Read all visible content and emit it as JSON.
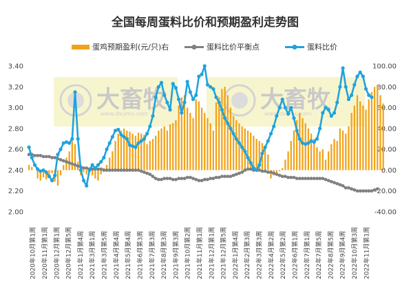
{
  "chart_data": {
    "type": "bar+line",
    "title": "全国每周蛋料比价和预期盈利走势图",
    "legend": [
      "蛋鸡预期盈利(元/只)右",
      "蛋料比价平衡点",
      "蛋料比价"
    ],
    "left_axis": {
      "ylim": [
        2.0,
        3.4
      ],
      "ticks": [
        "2.00",
        "2.20",
        "2.40",
        "2.60",
        "2.80",
        "3.00",
        "3.20",
        "3.40"
      ]
    },
    "right_axis": {
      "ylim": [
        -40,
        100
      ],
      "ticks": [
        "-40.00",
        "-20.00",
        "0.00",
        "20.00",
        "40.00",
        "60.00",
        "80.00",
        "100.00"
      ]
    },
    "x_labels": [
      "2020年10月第1周",
      "2020年11月第1周",
      "2020年12月第1周",
      "2020年12月第5周",
      "2021年1月第4周",
      "2021年3月第1周",
      "2021年3月第5周",
      "2021年4月第4周",
      "2021年5月第4周",
      "2021年6月第3周",
      "2021年7月第3周",
      "2021年8月第3周",
      "2021年9月第3周",
      "2021年10月第2周",
      "2021年11月第1周",
      "2021年12月第1周",
      "2021年12月第5周",
      "2022年1月第4周",
      "2022年2月第3周",
      "2022年3月第3周",
      "2022年4月第2周",
      "2022年5月第2周",
      "2022年6月第1周",
      "2022年7月第1周",
      "2022年7月第5周",
      "2022年8月第5周",
      "2022年9月第4周",
      "2022年10月第3周",
      "2022年11月第1周"
    ],
    "series": [
      {
        "name": "蛋鸡预期盈利(元/只)右",
        "type": "bar",
        "axis": "right",
        "color": "#f0a31a",
        "values": [
          5,
          3,
          0,
          -8,
          -10,
          -7,
          -9,
          -5,
          -3,
          -11,
          -15,
          -5,
          5,
          12,
          18,
          28,
          25,
          8,
          -5,
          -2,
          -4,
          -2,
          -5,
          -8,
          -10,
          -4,
          2,
          5,
          12,
          18,
          28,
          35,
          38,
          40,
          38,
          37,
          35,
          33,
          36,
          35,
          34,
          25,
          28,
          30,
          33,
          38,
          40,
          42,
          38,
          44,
          45,
          48,
          62,
          70,
          72,
          60,
          55,
          50,
          68,
          66,
          60,
          55,
          50,
          45,
          38,
          65,
          70,
          78,
          80,
          72,
          60,
          52,
          48,
          45,
          42,
          40,
          38,
          36,
          33,
          30,
          28,
          26,
          22,
          15,
          -8,
          -5,
          -3,
          -1,
          2,
          10,
          18,
          28,
          38,
          48,
          55,
          50,
          45,
          40,
          35,
          30,
          22,
          18,
          20,
          10,
          18,
          25,
          30,
          28,
          40,
          38,
          35,
          42,
          55,
          62,
          72,
          66,
          62,
          58,
          68,
          75,
          80,
          82,
          72,
          64
        ]
      },
      {
        "name": "蛋料比价平衡点",
        "type": "line",
        "axis": "left",
        "color": "#808080",
        "values": [
          2.55,
          2.55,
          2.54,
          2.54,
          2.54,
          2.53,
          2.53,
          2.53,
          2.52,
          2.52,
          2.51,
          2.5,
          2.49,
          2.48,
          2.47,
          2.46,
          2.45,
          2.44,
          2.43,
          2.42,
          2.42,
          2.41,
          2.41,
          2.41,
          2.41,
          2.41,
          2.4,
          2.4,
          2.4,
          2.4,
          2.4,
          2.4,
          2.4,
          2.4,
          2.4,
          2.4,
          2.4,
          2.4,
          2.4,
          2.39,
          2.38,
          2.37,
          2.36,
          2.34,
          2.32,
          2.31,
          2.31,
          2.32,
          2.32,
          2.32,
          2.31,
          2.31,
          2.32,
          2.32,
          2.32,
          2.33,
          2.33,
          2.32,
          2.31,
          2.3,
          2.3,
          2.31,
          2.31,
          2.32,
          2.32,
          2.33,
          2.33,
          2.34,
          2.34,
          2.34,
          2.34,
          2.35,
          2.36,
          2.37,
          2.38,
          2.4,
          2.41,
          2.41,
          2.4,
          2.4,
          2.4,
          2.39,
          2.39,
          2.38,
          2.38,
          2.37,
          2.36,
          2.35,
          2.34,
          2.34,
          2.33,
          2.33,
          2.33,
          2.32,
          2.32,
          2.32,
          2.32,
          2.32,
          2.32,
          2.32,
          2.32,
          2.32,
          2.32,
          2.31,
          2.3,
          2.29,
          2.28,
          2.27,
          2.26,
          2.25,
          2.23,
          2.23,
          2.22,
          2.21,
          2.2,
          2.2,
          2.2,
          2.2,
          2.2,
          2.2,
          2.21,
          2.22
        ]
      },
      {
        "name": "蛋料比价",
        "type": "line",
        "axis": "left",
        "color": "#1fa3dc",
        "values": [
          2.62,
          2.52,
          2.45,
          2.41,
          2.39,
          2.4,
          2.38,
          2.34,
          2.3,
          2.35,
          2.55,
          2.6,
          2.66,
          2.67,
          2.66,
          2.7,
          3.15,
          2.7,
          2.4,
          2.3,
          2.25,
          2.4,
          2.45,
          2.42,
          2.45,
          2.48,
          2.52,
          2.6,
          2.66,
          2.72,
          2.78,
          2.79,
          2.74,
          2.72,
          2.7,
          2.64,
          2.63,
          2.62,
          2.66,
          2.68,
          2.7,
          2.75,
          2.82,
          2.92,
          3.1,
          3.2,
          3.24,
          3.12,
          3.05,
          2.98,
          3.23,
          3.19,
          3.08,
          2.95,
          3.05,
          3.25,
          3.15,
          3.08,
          3.12,
          3.3,
          3.32,
          3.4,
          3.22,
          3.2,
          3.18,
          3.1,
          3.05,
          2.98,
          2.9,
          2.85,
          2.8,
          2.75,
          2.7,
          2.66,
          2.62,
          2.58,
          2.52,
          2.47,
          2.42,
          2.4,
          2.45,
          2.56,
          2.62,
          2.68,
          2.75,
          2.82,
          2.92,
          3.0,
          3.08,
          3.0,
          2.94,
          3.0,
          2.9,
          2.78,
          2.7,
          2.66,
          2.65,
          2.66,
          2.68,
          2.67,
          2.7,
          2.8,
          2.95,
          3.0,
          2.98,
          2.92,
          2.95,
          3.05,
          3.2,
          3.38,
          3.2,
          3.08,
          3.12,
          3.22,
          3.3,
          3.34,
          3.3,
          3.18,
          3.12,
          3.1
        ]
      }
    ],
    "watermark": {
      "text": "大畜牧",
      "url": "www.dxumu.com"
    }
  }
}
